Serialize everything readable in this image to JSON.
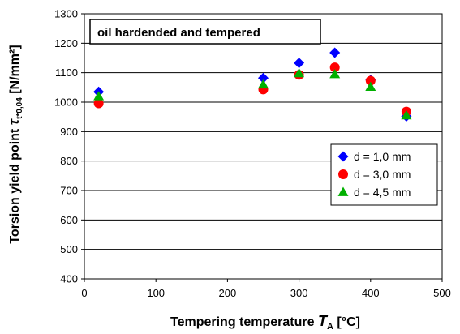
{
  "chart_data": {
    "type": "scatter",
    "annotation": "oil hardended and tempered",
    "xlabel": {
      "prefix": "Tempering temperature ",
      "var": "T",
      "sub": "A",
      "unit": " [°C]"
    },
    "ylabel": {
      "prefix": "Torsion yield point  ",
      "var": "τ",
      "sub": "t*0,04",
      "unit": " [N/mm²]"
    },
    "xlim": [
      0,
      500
    ],
    "ylim": [
      400,
      1300
    ],
    "xticks": [
      0,
      100,
      200,
      300,
      400,
      500
    ],
    "yticks": [
      400,
      500,
      600,
      700,
      800,
      900,
      1000,
      1100,
      1200,
      1300
    ],
    "grid": true,
    "legend_position": "right",
    "series": [
      {
        "name": "d = 1,0 mm",
        "marker": "diamond",
        "color": "#0000ff",
        "points": [
          [
            20,
            1035
          ],
          [
            250,
            1082
          ],
          [
            300,
            1133
          ],
          [
            350,
            1168
          ],
          [
            400,
            1075
          ],
          [
            450,
            952
          ]
        ]
      },
      {
        "name": "d = 3,0 mm",
        "marker": "circle",
        "color": "#ff0000",
        "points": [
          [
            20,
            996
          ],
          [
            250,
            1043
          ],
          [
            300,
            1093
          ],
          [
            350,
            1118
          ],
          [
            400,
            1073
          ],
          [
            450,
            968
          ]
        ]
      },
      {
        "name": "d = 4,5 mm",
        "marker": "triangle",
        "color": "#00b000",
        "points": [
          [
            20,
            1020
          ],
          [
            250,
            1060
          ],
          [
            300,
            1098
          ],
          [
            350,
            1095
          ],
          [
            400,
            1052
          ],
          [
            450,
            955
          ]
        ]
      }
    ]
  }
}
